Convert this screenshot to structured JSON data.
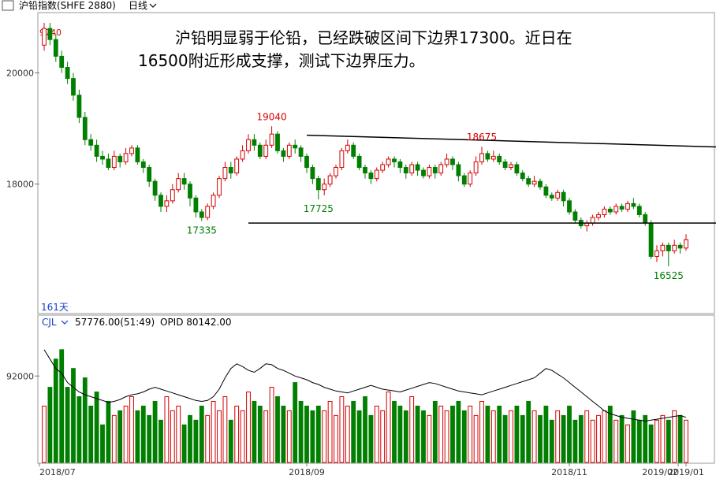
{
  "header": {
    "title": "沪铅指数(SHFE 2880)",
    "period": "日线",
    "period_arrow_icon": "chevron-down-icon"
  },
  "annotation": {
    "line1": "沪铅明显弱于伦铅，已经跌破区间下边界17300。近日在",
    "line2": "16500附近形成支撑，测试下边界压力。"
  },
  "labels": {
    "days": "161天",
    "top_price": "9740",
    "sub_indicator": "CJL",
    "sub_value": "57776.00(51:49)",
    "oi": "OPID 80142.00"
  },
  "colors": {
    "up": "#d40000",
    "down": "#007f00",
    "line": "#000000",
    "grid": "#c0c0c0",
    "text_blue": "#1a3cc8"
  },
  "chart_data": [
    {
      "type": "candlestick",
      "title": "沪铅指数(SHFE 2880)",
      "x_ticks": [
        "2018/07",
        "2018/09",
        "2018/11",
        "2019/01",
        "2019/02"
      ],
      "y_ticks": [
        18000,
        20000
      ],
      "ylim": [
        15700,
        21000
      ],
      "grid": false,
      "annotations": [
        {
          "text": "19040",
          "value": 19040,
          "type": "high"
        },
        {
          "text": "18675",
          "value": 18675,
          "type": "high"
        },
        {
          "text": "17725",
          "value": 17725,
          "type": "low"
        },
        {
          "text": "17335",
          "value": 17335,
          "type": "low"
        },
        {
          "text": "16525",
          "value": 16525,
          "type": "low"
        }
      ],
      "trendlines": [
        {
          "name": "upper",
          "from": [
            45,
            18880
          ],
          "to": [
            178,
            18480
          ]
        },
        {
          "name": "lower",
          "from": [
            35,
            17300
          ],
          "to": [
            198,
            17300
          ]
        }
      ],
      "candles": [
        [
          20500,
          20800,
          20900,
          20400
        ],
        [
          20800,
          20600,
          20900,
          20500
        ],
        [
          20600,
          20300,
          20700,
          20200
        ],
        [
          20300,
          20100,
          20400,
          20000
        ],
        [
          20100,
          19900,
          20200,
          19800
        ],
        [
          19900,
          19600,
          20000,
          19500
        ],
        [
          19600,
          19200,
          19700,
          19100
        ],
        [
          19200,
          18800,
          19300,
          18700
        ],
        [
          18800,
          18700,
          18900,
          18600
        ],
        [
          18700,
          18500,
          18800,
          18400
        ],
        [
          18500,
          18450,
          18600,
          18350
        ],
        [
          18450,
          18300,
          18550,
          18250
        ],
        [
          18300,
          18500,
          18600,
          18250
        ],
        [
          18500,
          18400,
          18550,
          18300
        ],
        [
          18400,
          18550,
          18650,
          18350
        ],
        [
          18550,
          18650,
          18700,
          18500
        ],
        [
          18650,
          18400,
          18700,
          18350
        ],
        [
          18400,
          18300,
          18450,
          18200
        ],
        [
          18300,
          18050,
          18350,
          17950
        ],
        [
          18050,
          17800,
          18100,
          17700
        ],
        [
          17800,
          17600,
          17850,
          17500
        ],
        [
          17600,
          17700,
          17800,
          17500
        ],
        [
          17700,
          17900,
          18000,
          17650
        ],
        [
          17900,
          18100,
          18200,
          17850
        ],
        [
          18100,
          18000,
          18200,
          17900
        ],
        [
          18000,
          17750,
          18050,
          17600
        ],
        [
          17750,
          17500,
          17800,
          17400
        ],
        [
          17500,
          17400,
          17550,
          17335
        ],
        [
          17400,
          17600,
          17650,
          17350
        ],
        [
          17600,
          17800,
          17850,
          17550
        ],
        [
          17800,
          18100,
          18150,
          17750
        ],
        [
          18100,
          18300,
          18400,
          18050
        ],
        [
          18300,
          18200,
          18400,
          18100
        ],
        [
          18200,
          18450,
          18500,
          18150
        ],
        [
          18450,
          18600,
          18700,
          18400
        ],
        [
          18600,
          18800,
          18900,
          18550
        ],
        [
          18800,
          18700,
          18900,
          18600
        ],
        [
          18700,
          18500,
          18750,
          18450
        ],
        [
          18500,
          18700,
          18800,
          18450
        ],
        [
          18700,
          18900,
          19040,
          18650
        ],
        [
          18900,
          18600,
          18950,
          18550
        ],
        [
          18600,
          18500,
          18650,
          18400
        ],
        [
          18500,
          18700,
          18750,
          18450
        ],
        [
          18700,
          18650,
          18800,
          18550
        ],
        [
          18650,
          18500,
          18700,
          18400
        ],
        [
          18500,
          18300,
          18550,
          18200
        ],
        [
          18300,
          18100,
          18350,
          18000
        ],
        [
          18100,
          17900,
          18150,
          17725
        ],
        [
          17900,
          18000,
          18100,
          17800
        ],
        [
          18000,
          18150,
          18200,
          17950
        ],
        [
          18150,
          18300,
          18350,
          18100
        ],
        [
          18300,
          18600,
          18650,
          18250
        ],
        [
          18600,
          18700,
          18800,
          18550
        ],
        [
          18700,
          18500,
          18750,
          18450
        ],
        [
          18500,
          18300,
          18550,
          18250
        ],
        [
          18300,
          18200,
          18350,
          18100
        ],
        [
          18200,
          18100,
          18250,
          18000
        ],
        [
          18100,
          18250,
          18300,
          18050
        ],
        [
          18250,
          18350,
          18400,
          18200
        ],
        [
          18350,
          18450,
          18500,
          18300
        ],
        [
          18450,
          18400,
          18500,
          18300
        ],
        [
          18400,
          18300,
          18450,
          18200
        ],
        [
          18300,
          18200,
          18350,
          18100
        ],
        [
          18200,
          18350,
          18400,
          18150
        ],
        [
          18350,
          18250,
          18400,
          18150
        ],
        [
          18250,
          18150,
          18300,
          18100
        ],
        [
          18150,
          18300,
          18350,
          18100
        ],
        [
          18300,
          18200,
          18350,
          18100
        ],
        [
          18200,
          18350,
          18400,
          18150
        ],
        [
          18350,
          18450,
          18550,
          18300
        ],
        [
          18450,
          18350,
          18500,
          18250
        ],
        [
          18350,
          18150,
          18400,
          18050
        ],
        [
          18150,
          18000,
          18200,
          17950
        ],
        [
          18000,
          18200,
          18250,
          17950
        ],
        [
          18200,
          18400,
          18500,
          18150
        ],
        [
          18400,
          18550,
          18675,
          18350
        ],
        [
          18550,
          18450,
          18600,
          18400
        ],
        [
          18450,
          18500,
          18600,
          18400
        ],
        [
          18500,
          18400,
          18550,
          18350
        ],
        [
          18400,
          18300,
          18450,
          18250
        ],
        [
          18300,
          18350,
          18400,
          18250
        ],
        [
          18350,
          18200,
          18400,
          18150
        ],
        [
          18200,
          18100,
          18250,
          18050
        ],
        [
          18100,
          18000,
          18150,
          17950
        ],
        [
          18000,
          18050,
          18150,
          17950
        ],
        [
          18050,
          17950,
          18100,
          17900
        ],
        [
          17950,
          17800,
          18000,
          17750
        ],
        [
          17800,
          17750,
          17850,
          17700
        ],
        [
          17750,
          17850,
          17900,
          17700
        ],
        [
          17850,
          17700,
          17900,
          17600
        ],
        [
          17700,
          17500,
          17750,
          17450
        ],
        [
          17500,
          17350,
          17550,
          17300
        ],
        [
          17350,
          17250,
          17400,
          17200
        ],
        [
          17250,
          17300,
          17350,
          17150
        ],
        [
          17300,
          17400,
          17450,
          17250
        ],
        [
          17400,
          17450,
          17500,
          17350
        ],
        [
          17450,
          17550,
          17600,
          17400
        ],
        [
          17550,
          17500,
          17600,
          17450
        ],
        [
          17500,
          17600,
          17650,
          17450
        ],
        [
          17600,
          17550,
          17650,
          17500
        ],
        [
          17550,
          17650,
          17700,
          17500
        ],
        [
          17650,
          17600,
          17750,
          17550
        ],
        [
          17600,
          17450,
          17650,
          17400
        ],
        [
          17450,
          17300,
          17500,
          17250
        ],
        [
          17300,
          16700,
          17350,
          16650
        ],
        [
          16700,
          16800,
          16900,
          16600
        ],
        [
          16800,
          16900,
          16950,
          16700
        ],
        [
          16900,
          16800,
          16950,
          16525
        ],
        [
          16800,
          16900,
          17000,
          16750
        ],
        [
          16900,
          16850,
          16950,
          16750
        ],
        [
          16850,
          17000,
          17100,
          16800
        ]
      ]
    },
    {
      "type": "bar",
      "title": "CJL",
      "y_ticks": [
        92000
      ],
      "ylim": [
        0,
        140000
      ],
      "volume": [
        60000,
        80000,
        110000,
        120000,
        80000,
        100000,
        70000,
        90000,
        60000,
        75000,
        40000,
        65000,
        50000,
        55000,
        60000,
        70000,
        55000,
        60000,
        50000,
        65000,
        45000,
        70000,
        55000,
        60000,
        40000,
        50000,
        45000,
        60000,
        50000,
        65000,
        55000,
        70000,
        45000,
        60000,
        55000,
        75000,
        65000,
        60000,
        55000,
        80000,
        70000,
        60000,
        55000,
        85000,
        65000,
        60000,
        55000,
        60000,
        55000,
        65000,
        50000,
        70000,
        60000,
        65000,
        55000,
        70000,
        50000,
        60000,
        55000,
        75000,
        65000,
        60000,
        55000,
        70000,
        60000,
        55000,
        50000,
        65000,
        60000,
        55000,
        60000,
        65000,
        55000,
        60000,
        50000,
        65000,
        60000,
        55000,
        60000,
        50000,
        55000,
        60000,
        50000,
        65000,
        55000,
        50000,
        60000,
        45000,
        55000,
        50000,
        60000,
        45000,
        50000,
        55000,
        45000,
        50000,
        55000,
        60000,
        45000,
        50000,
        40000,
        55000,
        45000,
        50000,
        40000,
        45000,
        50000,
        45000,
        55000,
        50000,
        45000
      ],
      "line": [
        120000,
        110000,
        100000,
        95000,
        85000,
        80000,
        75000,
        72000,
        70000,
        68000,
        66000,
        64000,
        65000,
        67000,
        70000,
        72000,
        73000,
        75000,
        78000,
        80000,
        78000,
        76000,
        74000,
        72000,
        70000,
        68000,
        66000,
        65000,
        66000,
        70000,
        78000,
        90000,
        100000,
        105000,
        102000,
        98000,
        96000,
        100000,
        105000,
        104000,
        100000,
        98000,
        95000,
        92000,
        90000,
        88000,
        85000,
        83000,
        80000,
        78000,
        76000,
        75000,
        74000,
        76000,
        78000,
        80000,
        82000,
        80000,
        78000,
        77000,
        76000,
        75000,
        77000,
        79000,
        81000,
        83000,
        85000,
        84000,
        82000,
        80000,
        78000,
        76000,
        75000,
        74000,
        73000,
        72000,
        74000,
        76000,
        78000,
        80000,
        82000,
        84000,
        86000,
        88000,
        90000,
        95000,
        100000,
        98000,
        94000,
        90000,
        85000,
        80000,
        75000,
        70000,
        65000,
        60000,
        55000,
        52000,
        50000,
        48000,
        47000,
        46000,
        45000,
        44000,
        45000,
        46000,
        47000,
        48000,
        49000,
        50000,
        48000
      ]
    }
  ]
}
